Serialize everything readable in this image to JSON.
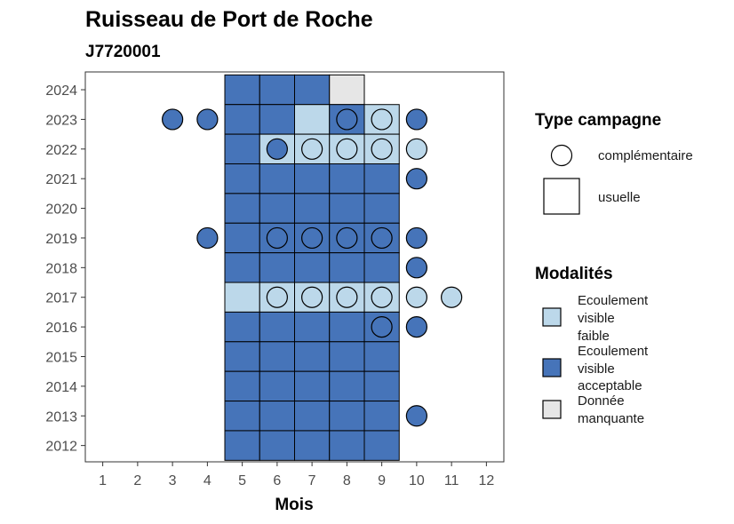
{
  "chart_data": {
    "type": "heatmap",
    "title": "Ruisseau de Port de Roche",
    "subtitle": "J7720001",
    "xlabel": "Mois",
    "ylabel": "",
    "x_ticks": [
      1,
      2,
      3,
      4,
      5,
      6,
      7,
      8,
      9,
      10,
      11,
      12
    ],
    "y_ticks": [
      2012,
      2013,
      2014,
      2015,
      2016,
      2017,
      2018,
      2019,
      2020,
      2021,
      2022,
      2023,
      2024
    ],
    "xlim": [
      0.5,
      12.5
    ],
    "ylim": [
      2011.45,
      2024.6
    ],
    "grid": false,
    "colors": {
      "faible": "#bcd8ea",
      "acceptable": "#4674b9",
      "manquante": "#e6e6e6"
    },
    "legend_type": {
      "title": "Type campagne",
      "items": [
        {
          "label": "complémentaire",
          "shape": "circle"
        },
        {
          "label": "usuelle",
          "shape": "square"
        }
      ]
    },
    "legend_modalites": {
      "title": "Modalités",
      "items": [
        {
          "key": "faible",
          "lines": [
            "Ecoulement",
            "visible",
            "faible"
          ]
        },
        {
          "key": "acceptable",
          "lines": [
            "Ecoulement",
            "visible",
            "acceptable"
          ]
        },
        {
          "key": "manquante",
          "lines": [
            "Donnée",
            "manquante"
          ]
        }
      ]
    },
    "usuelle": [
      {
        "year": 2024,
        "values": {
          "5": "acceptable",
          "6": "acceptable",
          "7": "acceptable",
          "8": "manquante"
        }
      },
      {
        "year": 2023,
        "values": {
          "5": "acceptable",
          "6": "acceptable",
          "7": "faible",
          "8": "acceptable",
          "9": "faible"
        }
      },
      {
        "year": 2022,
        "values": {
          "5": "acceptable",
          "6": "faible",
          "7": "faible",
          "8": "faible",
          "9": "faible"
        }
      },
      {
        "year": 2021,
        "values": {
          "5": "acceptable",
          "6": "acceptable",
          "7": "acceptable",
          "8": "acceptable",
          "9": "acceptable"
        }
      },
      {
        "year": 2020,
        "values": {
          "5": "acceptable",
          "6": "acceptable",
          "7": "acceptable",
          "8": "acceptable",
          "9": "acceptable"
        }
      },
      {
        "year": 2019,
        "values": {
          "5": "acceptable",
          "6": "acceptable",
          "7": "acceptable",
          "8": "acceptable",
          "9": "acceptable"
        }
      },
      {
        "year": 2018,
        "values": {
          "5": "acceptable",
          "6": "acceptable",
          "7": "acceptable",
          "8": "acceptable",
          "9": "acceptable"
        }
      },
      {
        "year": 2017,
        "values": {
          "5": "faible",
          "6": "faible",
          "7": "faible",
          "8": "faible",
          "9": "faible"
        }
      },
      {
        "year": 2016,
        "values": {
          "5": "acceptable",
          "6": "acceptable",
          "7": "acceptable",
          "8": "acceptable",
          "9": "acceptable"
        }
      },
      {
        "year": 2015,
        "values": {
          "5": "acceptable",
          "6": "acceptable",
          "7": "acceptable",
          "8": "acceptable",
          "9": "acceptable"
        }
      },
      {
        "year": 2014,
        "values": {
          "5": "acceptable",
          "6": "acceptable",
          "7": "acceptable",
          "8": "acceptable",
          "9": "acceptable"
        }
      },
      {
        "year": 2013,
        "values": {
          "5": "acceptable",
          "6": "acceptable",
          "7": "acceptable",
          "8": "acceptable",
          "9": "acceptable"
        }
      },
      {
        "year": 2012,
        "values": {
          "5": "acceptable",
          "6": "acceptable",
          "7": "acceptable",
          "8": "acceptable",
          "9": "acceptable"
        }
      }
    ],
    "complementaire": [
      {
        "year": 2023,
        "month": 3,
        "value": "acceptable"
      },
      {
        "year": 2023,
        "month": 4,
        "value": "acceptable"
      },
      {
        "year": 2023,
        "month": 8,
        "value": "acceptable"
      },
      {
        "year": 2023,
        "month": 9,
        "value": "faible"
      },
      {
        "year": 2023,
        "month": 10,
        "value": "acceptable"
      },
      {
        "year": 2022,
        "month": 6,
        "value": "acceptable"
      },
      {
        "year": 2022,
        "month": 7,
        "value": "faible"
      },
      {
        "year": 2022,
        "month": 8,
        "value": "faible"
      },
      {
        "year": 2022,
        "month": 9,
        "value": "faible"
      },
      {
        "year": 2022,
        "month": 10,
        "value": "faible"
      },
      {
        "year": 2021,
        "month": 10,
        "value": "acceptable"
      },
      {
        "year": 2019,
        "month": 4,
        "value": "acceptable"
      },
      {
        "year": 2019,
        "month": 6,
        "value": "acceptable"
      },
      {
        "year": 2019,
        "month": 7,
        "value": "acceptable"
      },
      {
        "year": 2019,
        "month": 8,
        "value": "acceptable"
      },
      {
        "year": 2019,
        "month": 9,
        "value": "acceptable"
      },
      {
        "year": 2019,
        "month": 10,
        "value": "acceptable"
      },
      {
        "year": 2018,
        "month": 10,
        "value": "acceptable"
      },
      {
        "year": 2017,
        "month": 6,
        "value": "faible"
      },
      {
        "year": 2017,
        "month": 7,
        "value": "faible"
      },
      {
        "year": 2017,
        "month": 8,
        "value": "faible"
      },
      {
        "year": 2017,
        "month": 9,
        "value": "faible"
      },
      {
        "year": 2017,
        "month": 10,
        "value": "faible"
      },
      {
        "year": 2017,
        "month": 11,
        "value": "faible"
      },
      {
        "year": 2016,
        "month": 9,
        "value": "acceptable"
      },
      {
        "year": 2016,
        "month": 10,
        "value": "acceptable"
      },
      {
        "year": 2013,
        "month": 10,
        "value": "acceptable"
      }
    ]
  }
}
